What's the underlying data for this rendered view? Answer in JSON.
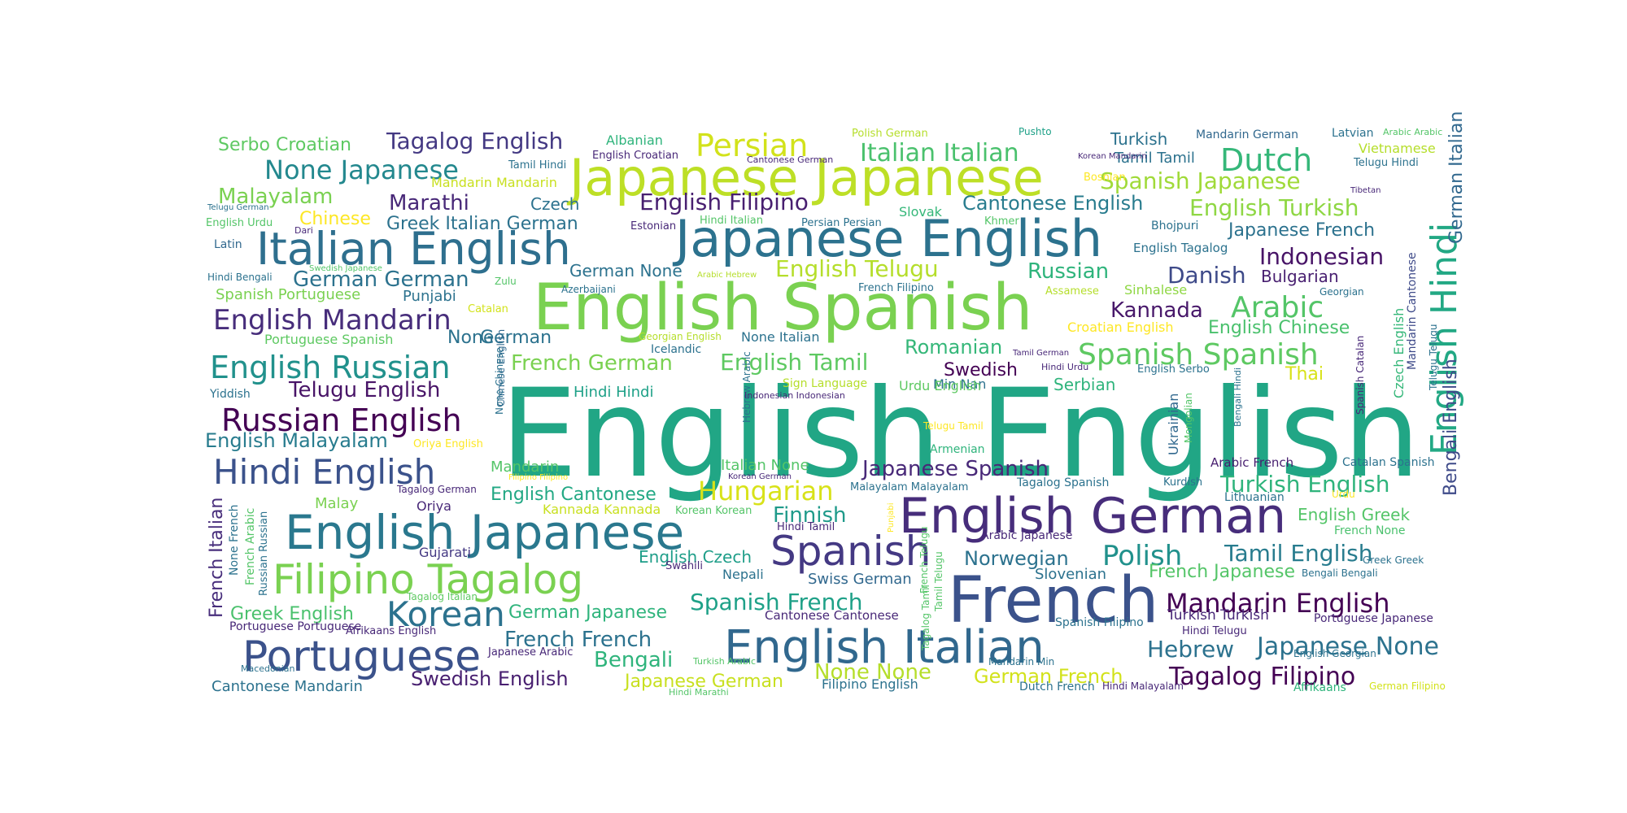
{
  "palette": [
    "#440154",
    "#482878",
    "#3e4a89",
    "#31688e",
    "#26828e",
    "#1f9e89",
    "#35b779",
    "#6ece58",
    "#b5de2b",
    "#fde725"
  ],
  "words": [
    {
      "text": "English English",
      "color": "#21a685"
    },
    {
      "text": "English Spanish",
      "color": "#7ad151"
    },
    {
      "text": "Japanese English",
      "color": "#2c728e"
    },
    {
      "text": "Japanese Japanese",
      "color": "#bddf26"
    },
    {
      "text": "Italian English",
      "color": "#2e6f8e"
    },
    {
      "text": "French",
      "color": "#3b528b"
    },
    {
      "text": "English German",
      "color": "#472d7b"
    },
    {
      "text": "English Japanese",
      "color": "#2a788e"
    },
    {
      "text": "Filipino Tagalog",
      "color": "#7ad151"
    },
    {
      "text": "English Italian",
      "color": "#31688e"
    },
    {
      "text": "Portuguese",
      "color": "#3b528b"
    },
    {
      "text": "Spanish",
      "color": "#443983"
    },
    {
      "text": "Korean",
      "color": "#2c728e"
    },
    {
      "text": "English Hindi",
      "color": "#22a884"
    },
    {
      "text": "Hindi English",
      "color": "#3b528b"
    },
    {
      "text": "Russian English",
      "color": "#440154"
    },
    {
      "text": "English Russian",
      "color": "#21918c"
    },
    {
      "text": "English Mandarin",
      "color": "#472d7b"
    },
    {
      "text": "Dutch",
      "color": "#35b779"
    },
    {
      "text": "Persian",
      "color": "#d2e21b"
    },
    {
      "text": "Arabic",
      "color": "#54c568"
    },
    {
      "text": "Spanish Spanish",
      "color": "#5ec962"
    },
    {
      "text": "Polish",
      "color": "#21918c"
    },
    {
      "text": "Mandarin English",
      "color": "#440154"
    },
    {
      "text": "Tagalog Filipino",
      "color": "#440154"
    },
    {
      "text": "Japanese None",
      "color": "#2c728e"
    },
    {
      "text": "Hungarian",
      "color": "#d8e219"
    },
    {
      "text": "None Japanese",
      "color": "#23888e"
    },
    {
      "text": "Italian Italian",
      "color": "#4ac16d"
    },
    {
      "text": "Indonesian",
      "color": "#481467"
    },
    {
      "text": "Spanish Japanese",
      "color": "#a0da39"
    },
    {
      "text": "English Turkish",
      "color": "#8fd744"
    },
    {
      "text": "Turkish English",
      "color": "#2fb47c"
    },
    {
      "text": "Tamil English",
      "color": "#287c8e"
    },
    {
      "text": "Tagalog English",
      "color": "#443983"
    },
    {
      "text": "English Filipino",
      "color": "#481f70"
    },
    {
      "text": "English Telugu",
      "color": "#b5de2b"
    },
    {
      "text": "English Tamil",
      "color": "#5ec962"
    },
    {
      "text": "Spanish French",
      "color": "#1fa188"
    },
    {
      "text": "Telugu English",
      "color": "#481467"
    },
    {
      "text": "Finnish",
      "color": "#1f9a8a"
    },
    {
      "text": "Japanese Spanish",
      "color": "#482878"
    },
    {
      "text": "Malayalam",
      "color": "#7ad151"
    },
    {
      "text": "Serbo Croatian",
      "color": "#5ec962"
    },
    {
      "text": "Marathi",
      "color": "#482878"
    },
    {
      "text": "Cantonese English",
      "color": "#287c8e"
    },
    {
      "text": "Japanese French",
      "color": "#2c728e"
    },
    {
      "text": "Danish",
      "color": "#3e4a89"
    },
    {
      "text": "Russian",
      "color": "#2fb47c"
    },
    {
      "text": "Kannada",
      "color": "#48186a"
    },
    {
      "text": "Romanian",
      "color": "#35b779"
    },
    {
      "text": "English Chinese",
      "color": "#4ac16d"
    },
    {
      "text": "French German",
      "color": "#7ad151"
    },
    {
      "text": "English Malayalam",
      "color": "#287c8e"
    },
    {
      "text": "Swedish",
      "color": "#440154"
    },
    {
      "text": "English Cantonese",
      "color": "#22a884"
    },
    {
      "text": "Norwegian",
      "color": "#2c728e"
    },
    {
      "text": "French Japanese",
      "color": "#54c568"
    },
    {
      "text": "English Greek",
      "color": "#54c568"
    },
    {
      "text": "Hebrew",
      "color": "#2c728e"
    },
    {
      "text": "Bengali",
      "color": "#2fb47c"
    },
    {
      "text": "French French",
      "color": "#2c728e"
    },
    {
      "text": "None None",
      "color": "#b5de2b"
    },
    {
      "text": "German French",
      "color": "#d2e21b"
    },
    {
      "text": "Swedish English",
      "color": "#481f70"
    },
    {
      "text": "Japanese German",
      "color": "#c8e020"
    },
    {
      "text": "German German",
      "color": "#2c728e"
    },
    {
      "text": "Greek Italian German",
      "color": "#2c728e"
    },
    {
      "text": "Chinese",
      "color": "#fde725"
    },
    {
      "text": "Thai",
      "color": "#d8e219"
    },
    {
      "text": "Serbian",
      "color": "#2fb47c"
    },
    {
      "text": "Bulgarian",
      "color": "#481f70"
    },
    {
      "text": "Bengali English",
      "color": "#3e4a89"
    },
    {
      "text": "German Italian",
      "color": "#31688e"
    },
    {
      "text": "French Italian",
      "color": "#472d7b"
    },
    {
      "text": "Greek English",
      "color": "#4ac16d"
    },
    {
      "text": "Cantonese Mandarin",
      "color": "#2c728e"
    },
    {
      "text": "German Japanese",
      "color": "#2fb47c"
    },
    {
      "text": "English Czech",
      "color": "#1f9e89"
    },
    {
      "text": "Swiss German",
      "color": "#31688e"
    },
    {
      "text": "Slovenian",
      "color": "#2c728e"
    },
    {
      "text": "Turkish",
      "color": "#2c728e"
    },
    {
      "text": "Tamil Tamil",
      "color": "#2c728e"
    },
    {
      "text": "Czech",
      "color": "#2c728e"
    },
    {
      "text": "Punjabi",
      "color": "#2c728e"
    },
    {
      "text": "Spanish Portuguese",
      "color": "#7ad151"
    },
    {
      "text": "German None",
      "color": "#2c728e"
    },
    {
      "text": "None",
      "color": "#2c728e"
    },
    {
      "text": "German",
      "color": "#2c728e"
    },
    {
      "text": "Hindi Hindi",
      "color": "#1fa188"
    },
    {
      "text": "Mandarin",
      "color": "#54c568"
    },
    {
      "text": "Italian None",
      "color": "#54c568"
    },
    {
      "text": "Malay",
      "color": "#7ad151"
    },
    {
      "text": "Oriya",
      "color": "#482878"
    },
    {
      "text": "Gujarati",
      "color": "#443983"
    },
    {
      "text": "Nepali",
      "color": "#2c728e"
    },
    {
      "text": "Mandarin Mandarin",
      "color": "#c8e020"
    },
    {
      "text": "Portuguese Spanish",
      "color": "#5ec962"
    },
    {
      "text": "Kannada Kannada",
      "color": "#c8e020"
    },
    {
      "text": "Yiddish",
      "color": "#2c728e"
    },
    {
      "text": "Latin",
      "color": "#31688e"
    },
    {
      "text": "Min Nan",
      "color": "#2c728e"
    },
    {
      "text": "Urdu English",
      "color": "#5ec962"
    },
    {
      "text": "Armenian",
      "color": "#2fb47c"
    },
    {
      "text": "Ukrainian",
      "color": "#31688e"
    },
    {
      "text": "Sinhalese",
      "color": "#8fd744"
    },
    {
      "text": "Croatian English",
      "color": "#fde725"
    },
    {
      "text": "Slovak",
      "color": "#35b779"
    },
    {
      "text": "Czech English",
      "color": "#35b779"
    },
    {
      "text": "Mandarin Cantonese",
      "color": "#3e4a89"
    },
    {
      "text": "Telugu Telugu",
      "color": "#2c728e"
    },
    {
      "text": "Spanish Catalan",
      "color": "#482878"
    },
    {
      "text": "Hebrew Arabic",
      "color": "#2c728e"
    },
    {
      "text": "Chinese English",
      "color": "#31688e"
    },
    {
      "text": "Arabic French",
      "color": "#481f70"
    },
    {
      "text": "Catalan Spanish",
      "color": "#2c728e"
    },
    {
      "text": "Lithuanian",
      "color": "#2c728e"
    },
    {
      "text": "French None",
      "color": "#4ac16d"
    },
    {
      "text": "Tagalog Spanish",
      "color": "#2c728e"
    },
    {
      "text": "Malayalam Malayalam",
      "color": "#2c728e"
    },
    {
      "text": "Korean Korean",
      "color": "#54c568"
    },
    {
      "text": "Arabic Japanese",
      "color": "#482878"
    },
    {
      "text": "Cantonese Cantonese",
      "color": "#482878"
    },
    {
      "text": "Turkish Turkish",
      "color": "#482878"
    },
    {
      "text": "Portuguese Japanese",
      "color": "#482878"
    },
    {
      "text": "Spanish Filipino",
      "color": "#2c728e"
    },
    {
      "text": "Hindi Telugu",
      "color": "#482878"
    },
    {
      "text": "Afrikaans English",
      "color": "#482878"
    },
    {
      "text": "Portuguese Portuguese",
      "color": "#482878"
    },
    {
      "text": "Tagalog German",
      "color": "#482878"
    },
    {
      "text": "Tagalog Italian",
      "color": "#5ec962"
    },
    {
      "text": "Japanese Arabic",
      "color": "#482878"
    },
    {
      "text": "Filipino English",
      "color": "#2c728e"
    },
    {
      "text": "Dutch French",
      "color": "#2c728e"
    },
    {
      "text": "Hindi Malayalam",
      "color": "#482878"
    },
    {
      "text": "Afrikaans",
      "color": "#2fb47c"
    },
    {
      "text": "Macedonian",
      "color": "#2c728e"
    },
    {
      "text": "Hindi Marathi",
      "color": "#54c568"
    },
    {
      "text": "Turkish Arabic",
      "color": "#54c568"
    },
    {
      "text": "Mandarin Min",
      "color": "#2c728e"
    },
    {
      "text": "English Georgian",
      "color": "#2c728e"
    },
    {
      "text": "Bengali Bengali",
      "color": "#2c728e"
    },
    {
      "text": "Greek Greek",
      "color": "#2c728e"
    },
    {
      "text": "German Filipino",
      "color": "#d2e21b"
    },
    {
      "text": "Albanian",
      "color": "#2fb47c"
    },
    {
      "text": "English Croatian",
      "color": "#482878"
    },
    {
      "text": "Tamil Hindi",
      "color": "#2c728e"
    },
    {
      "text": "Cantonese German",
      "color": "#482878"
    },
    {
      "text": "Polish German",
      "color": "#b5de2b"
    },
    {
      "text": "Pushto",
      "color": "#1fa188"
    },
    {
      "text": "Mandarin German",
      "color": "#31688e"
    },
    {
      "text": "Latvian",
      "color": "#2c728e"
    },
    {
      "text": "Arabic Arabic",
      "color": "#54c568"
    },
    {
      "text": "Vietnamese",
      "color": "#b5de2b"
    },
    {
      "text": "Telugu Hindi",
      "color": "#2c728e"
    },
    {
      "text": "Bosnian",
      "color": "#fde725"
    },
    {
      "text": "Korean Mandarin",
      "color": "#482878"
    },
    {
      "text": "Tibetan",
      "color": "#482878"
    },
    {
      "text": "Telugu German",
      "color": "#2c728e"
    },
    {
      "text": "English Urdu",
      "color": "#54c568"
    },
    {
      "text": "Dari",
      "color": "#482878"
    },
    {
      "text": "Estonian",
      "color": "#482878"
    },
    {
      "text": "Hindi Italian",
      "color": "#54c568"
    },
    {
      "text": "Persian Persian",
      "color": "#2c728e"
    },
    {
      "text": "Khmer",
      "color": "#54c568"
    },
    {
      "text": "Bhojpuri",
      "color": "#2c728e"
    },
    {
      "text": "English Tagalog",
      "color": "#2c728e"
    },
    {
      "text": "Hindi Bengali",
      "color": "#2c728e"
    },
    {
      "text": "Swedish Japanese",
      "color": "#54c568"
    },
    {
      "text": "Zulu",
      "color": "#54c568"
    },
    {
      "text": "Azerbaijani",
      "color": "#2c728e"
    },
    {
      "text": "Arabic Hebrew",
      "color": "#b5de2b"
    },
    {
      "text": "French Filipino",
      "color": "#2c728e"
    },
    {
      "text": "Assamese",
      "color": "#b5de2b"
    },
    {
      "text": "Georgian",
      "color": "#2c728e"
    },
    {
      "text": "Catalan",
      "color": "#d2e21b"
    },
    {
      "text": "Georgian English",
      "color": "#b5de2b"
    },
    {
      "text": "None Italian",
      "color": "#2c728e"
    },
    {
      "text": "Icelandic",
      "color": "#2c728e"
    },
    {
      "text": "Tamil German",
      "color": "#482878"
    },
    {
      "text": "Hindi Urdu",
      "color": "#482878"
    },
    {
      "text": "English Serbo",
      "color": "#2c728e"
    },
    {
      "text": "Sign Language",
      "color": "#b5de2b"
    },
    {
      "text": "Indonesian Indonesian",
      "color": "#482878"
    },
    {
      "text": "Telugu Tamil",
      "color": "#fde725"
    },
    {
      "text": "Mongolian",
      "color": "#54c568"
    },
    {
      "text": "Bengali Hindi",
      "color": "#2c728e"
    },
    {
      "text": "Oriya English",
      "color": "#fde725"
    },
    {
      "text": "Filipino Filipino",
      "color": "#fde725"
    },
    {
      "text": "Korean German",
      "color": "#482878"
    },
    {
      "text": "Kurdish",
      "color": "#2c728e"
    },
    {
      "text": "Urdu",
      "color": "#fde725"
    },
    {
      "text": "Hindi Tamil",
      "color": "#482878"
    },
    {
      "text": "Punjabi",
      "color": "#fde725"
    },
    {
      "text": "Swahili",
      "color": "#482878"
    },
    {
      "text": "Tamil Telugu",
      "color": "#54c568"
    },
    {
      "text": "French Telugu",
      "color": "#54c568"
    },
    {
      "text": "Tagalog Tamil",
      "color": "#54c568"
    },
    {
      "text": "None French",
      "color": "#2c728e"
    },
    {
      "text": "French Arabic",
      "color": "#54c568"
    },
    {
      "text": "Russian Russian",
      "color": "#2c728e"
    },
    {
      "text": "None Chinese",
      "color": "#2c728e"
    }
  ]
}
